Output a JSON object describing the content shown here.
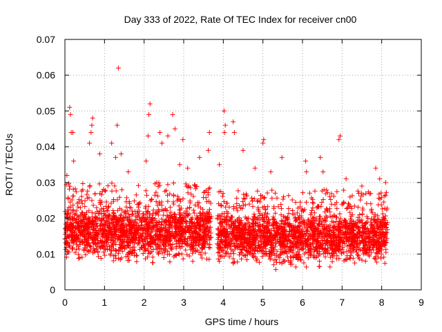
{
  "chart_data": {
    "type": "scatter",
    "title": "Day 333 of 2022, Rate Of TEC Index for receiver cn00",
    "xlabel": "GPS time / hours",
    "ylabel": "ROTI / TECUs",
    "xlim": [
      0,
      9
    ],
    "ylim": [
      0,
      0.07
    ],
    "x_ticks": [
      "0",
      "1",
      "2",
      "3",
      "4",
      "5",
      "6",
      "7",
      "8",
      "9"
    ],
    "y_ticks": [
      "0",
      "0.01",
      "0.02",
      "0.03",
      "0.04",
      "0.05",
      "0.06",
      "0.07"
    ],
    "grid": true,
    "marker": "+",
    "series": [
      {
        "name": "ROTI",
        "color": "#ff0000",
        "data_ranges": [
          {
            "x_start": 0.0,
            "x_end": 3.7,
            "y_min": 0.006,
            "y_max": 0.027
          },
          {
            "x_start": 3.85,
            "x_end": 8.15,
            "y_min": 0.005,
            "y_max": 0.025
          }
        ],
        "highlight_points": [
          [
            0.12,
            0.051
          ],
          [
            0.14,
            0.049
          ],
          [
            0.16,
            0.044
          ],
          [
            0.2,
            0.044
          ],
          [
            0.22,
            0.036
          ],
          [
            0.7,
            0.048
          ],
          [
            0.68,
            0.046
          ],
          [
            0.62,
            0.041
          ],
          [
            0.66,
            0.044
          ],
          [
            0.88,
            0.038
          ],
          [
            1.35,
            0.062
          ],
          [
            1.32,
            0.046
          ],
          [
            1.18,
            0.041
          ],
          [
            1.28,
            0.037
          ],
          [
            1.42,
            0.038
          ],
          [
            2.15,
            0.052
          ],
          [
            2.12,
            0.049
          ],
          [
            2.1,
            0.043
          ],
          [
            2.05,
            0.036
          ],
          [
            2.4,
            0.044
          ],
          [
            2.45,
            0.041
          ],
          [
            2.6,
            0.043
          ],
          [
            2.72,
            0.049
          ],
          [
            2.78,
            0.045
          ],
          [
            2.98,
            0.042
          ],
          [
            3.65,
            0.044
          ],
          [
            3.62,
            0.039
          ],
          [
            3.4,
            0.037
          ],
          [
            4.02,
            0.05
          ],
          [
            4.05,
            0.046
          ],
          [
            4.03,
            0.044
          ],
          [
            4.25,
            0.047
          ],
          [
            4.28,
            0.044
          ],
          [
            4.5,
            0.039
          ],
          [
            5.02,
            0.042
          ],
          [
            5.0,
            0.041
          ],
          [
            5.48,
            0.037
          ],
          [
            6.08,
            0.036
          ],
          [
            6.45,
            0.037
          ],
          [
            6.52,
            0.033
          ],
          [
            6.95,
            0.043
          ],
          [
            6.92,
            0.042
          ],
          [
            7.85,
            0.034
          ],
          [
            7.95,
            0.031
          ],
          [
            0.05,
            0.032
          ],
          [
            1.6,
            0.033
          ],
          [
            3.1,
            0.034
          ],
          [
            3.9,
            0.035
          ],
          [
            4.8,
            0.034
          ],
          [
            5.2,
            0.033
          ],
          [
            7.1,
            0.031
          ],
          [
            7.5,
            0.029
          ],
          [
            8.1,
            0.03
          ],
          [
            6.1,
            0.033
          ],
          [
            2.9,
            0.035
          ]
        ]
      }
    ]
  }
}
